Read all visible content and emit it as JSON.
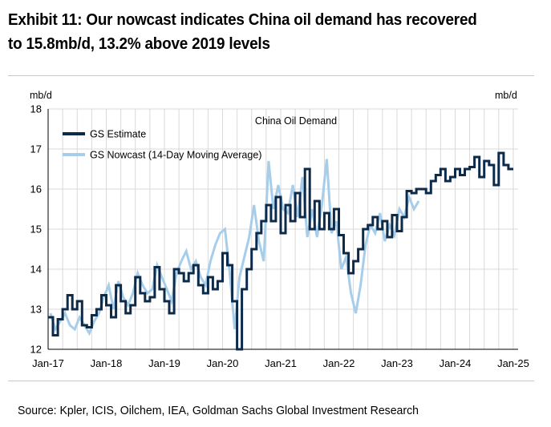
{
  "exhibit": {
    "title_line1": "Exhibit 11: Our nowcast indicates China oil demand has recovered",
    "title_line2": "to 15.8mb/d, 13.2% above 2019 levels",
    "source": "Source: Kpler, ICIS, Oilchem, IEA, Goldman Sachs Global Investment Research"
  },
  "chart_data": {
    "type": "line",
    "title": "China Oil Demand",
    "ylabel_left": "mb/d",
    "ylabel_right": "mb/d",
    "ylim": [
      12,
      18
    ],
    "yticks": [
      12,
      13,
      14,
      15,
      16,
      17,
      18
    ],
    "xlim": [
      "2017-01",
      "2025-02"
    ],
    "xticks": [
      "Jan-17",
      "Jan-18",
      "Jan-19",
      "Jan-20",
      "Jan-21",
      "Jan-22",
      "Jan-23",
      "Jan-24",
      "Jan-25"
    ],
    "grid": true,
    "legend_position": "top-left",
    "colors": {
      "estimate": "#0c2a4a",
      "nowcast": "#a6cdea",
      "grid": "#d9d9d9",
      "axis": "#000000"
    },
    "series": [
      {
        "name": "GS Estimate",
        "style": "step",
        "x": [
          "2017-01",
          "2017-02",
          "2017-03",
          "2017-04",
          "2017-05",
          "2017-06",
          "2017-07",
          "2017-08",
          "2017-09",
          "2017-10",
          "2017-11",
          "2017-12",
          "2018-01",
          "2018-02",
          "2018-03",
          "2018-04",
          "2018-05",
          "2018-06",
          "2018-07",
          "2018-08",
          "2018-09",
          "2018-10",
          "2018-11",
          "2018-12",
          "2019-01",
          "2019-02",
          "2019-03",
          "2019-04",
          "2019-05",
          "2019-06",
          "2019-07",
          "2019-08",
          "2019-09",
          "2019-10",
          "2019-11",
          "2019-12",
          "2020-01",
          "2020-02",
          "2020-03",
          "2020-04",
          "2020-05",
          "2020-06",
          "2020-07",
          "2020-08",
          "2020-09",
          "2020-10",
          "2020-11",
          "2020-12",
          "2021-01",
          "2021-02",
          "2021-03",
          "2021-04",
          "2021-05",
          "2021-06",
          "2021-07",
          "2021-08",
          "2021-09",
          "2021-10",
          "2021-11",
          "2021-12",
          "2022-01",
          "2022-02",
          "2022-03",
          "2022-04",
          "2022-05",
          "2022-06",
          "2022-07",
          "2022-08",
          "2022-09",
          "2022-10",
          "2022-11",
          "2022-12",
          "2023-01",
          "2023-02",
          "2023-03",
          "2023-04",
          "2023-05",
          "2023-06",
          "2023-07",
          "2023-08",
          "2023-09",
          "2023-10",
          "2023-11",
          "2023-12",
          "2024-01",
          "2024-02",
          "2024-03",
          "2024-04",
          "2024-05",
          "2024-06",
          "2024-07",
          "2024-08",
          "2024-09",
          "2024-10",
          "2024-11",
          "2024-12"
        ],
        "values": [
          12.8,
          12.35,
          12.75,
          13.0,
          13.35,
          13.0,
          13.2,
          12.6,
          12.55,
          12.85,
          13.0,
          13.35,
          13.1,
          12.8,
          13.6,
          13.2,
          12.9,
          13.1,
          13.8,
          13.4,
          13.2,
          13.3,
          14.05,
          13.5,
          13.2,
          12.9,
          14.0,
          13.9,
          13.7,
          13.9,
          14.1,
          13.6,
          13.4,
          13.8,
          13.5,
          13.7,
          14.4,
          14.1,
          13.2,
          12.0,
          13.5,
          14.0,
          14.5,
          14.9,
          15.2,
          15.6,
          15.2,
          15.8,
          14.9,
          15.6,
          15.2,
          15.9,
          15.3,
          16.5,
          15.0,
          15.7,
          15.0,
          15.4,
          15.0,
          15.5,
          14.85,
          14.4,
          13.9,
          14.2,
          14.5,
          15.0,
          15.1,
          15.3,
          15.0,
          15.2,
          14.8,
          15.35,
          14.95,
          15.3,
          15.95,
          15.9,
          16.0,
          16.0,
          15.9,
          16.2,
          16.35,
          16.5,
          16.2,
          16.3,
          16.5,
          16.35,
          16.5,
          16.55,
          16.8,
          16.3,
          16.7,
          16.6,
          16.1,
          16.9,
          16.6,
          16.5
        ]
      },
      {
        "name": "GS Nowcast (14-Day Moving Average)",
        "style": "line",
        "x": [
          "2017-01",
          "2017-02",
          "2017-03",
          "2017-04",
          "2017-05",
          "2017-06",
          "2017-07",
          "2017-08",
          "2017-09",
          "2017-10",
          "2017-11",
          "2017-12",
          "2018-01",
          "2018-02",
          "2018-03",
          "2018-04",
          "2018-05",
          "2018-06",
          "2018-07",
          "2018-08",
          "2018-09",
          "2018-10",
          "2018-11",
          "2018-12",
          "2019-01",
          "2019-02",
          "2019-03",
          "2019-04",
          "2019-05",
          "2019-06",
          "2019-07",
          "2019-08",
          "2019-09",
          "2019-10",
          "2019-11",
          "2019-12",
          "2020-01",
          "2020-02",
          "2020-03",
          "2020-04",
          "2020-05",
          "2020-06",
          "2020-07",
          "2020-08",
          "2020-09",
          "2020-10",
          "2020-11",
          "2020-12",
          "2021-01",
          "2021-02",
          "2021-03",
          "2021-04",
          "2021-05",
          "2021-06",
          "2021-07",
          "2021-08",
          "2021-09",
          "2021-10",
          "2021-11",
          "2021-12",
          "2022-01",
          "2022-02",
          "2022-03",
          "2022-04",
          "2022-05",
          "2022-06",
          "2022-07",
          "2022-08",
          "2022-09",
          "2022-10",
          "2022-11",
          "2022-12",
          "2023-01",
          "2023-02",
          "2023-03",
          "2023-04",
          "2023-05"
        ],
        "values": [
          12.9,
          12.5,
          12.7,
          12.9,
          12.6,
          12.5,
          12.8,
          12.6,
          12.4,
          12.7,
          12.9,
          13.3,
          13.6,
          13.0,
          13.7,
          13.3,
          13.1,
          13.4,
          13.9,
          13.6,
          13.4,
          13.5,
          14.1,
          13.8,
          13.5,
          13.2,
          13.9,
          14.2,
          14.45,
          14.0,
          14.2,
          13.8,
          13.6,
          14.2,
          14.6,
          14.9,
          15.0,
          13.9,
          12.5,
          13.8,
          14.3,
          14.8,
          15.6,
          14.7,
          14.2,
          16.7,
          15.5,
          16.1,
          15.5,
          15.4,
          16.1,
          15.3,
          16.3,
          14.8,
          15.5,
          14.8,
          15.6,
          16.75,
          14.9,
          15.2,
          14.0,
          14.3,
          13.4,
          12.9,
          13.6,
          14.6,
          15.1,
          14.9,
          15.4,
          14.7,
          15.1,
          14.85,
          15.5,
          15.3,
          15.8,
          15.5,
          15.7
        ]
      }
    ]
  }
}
